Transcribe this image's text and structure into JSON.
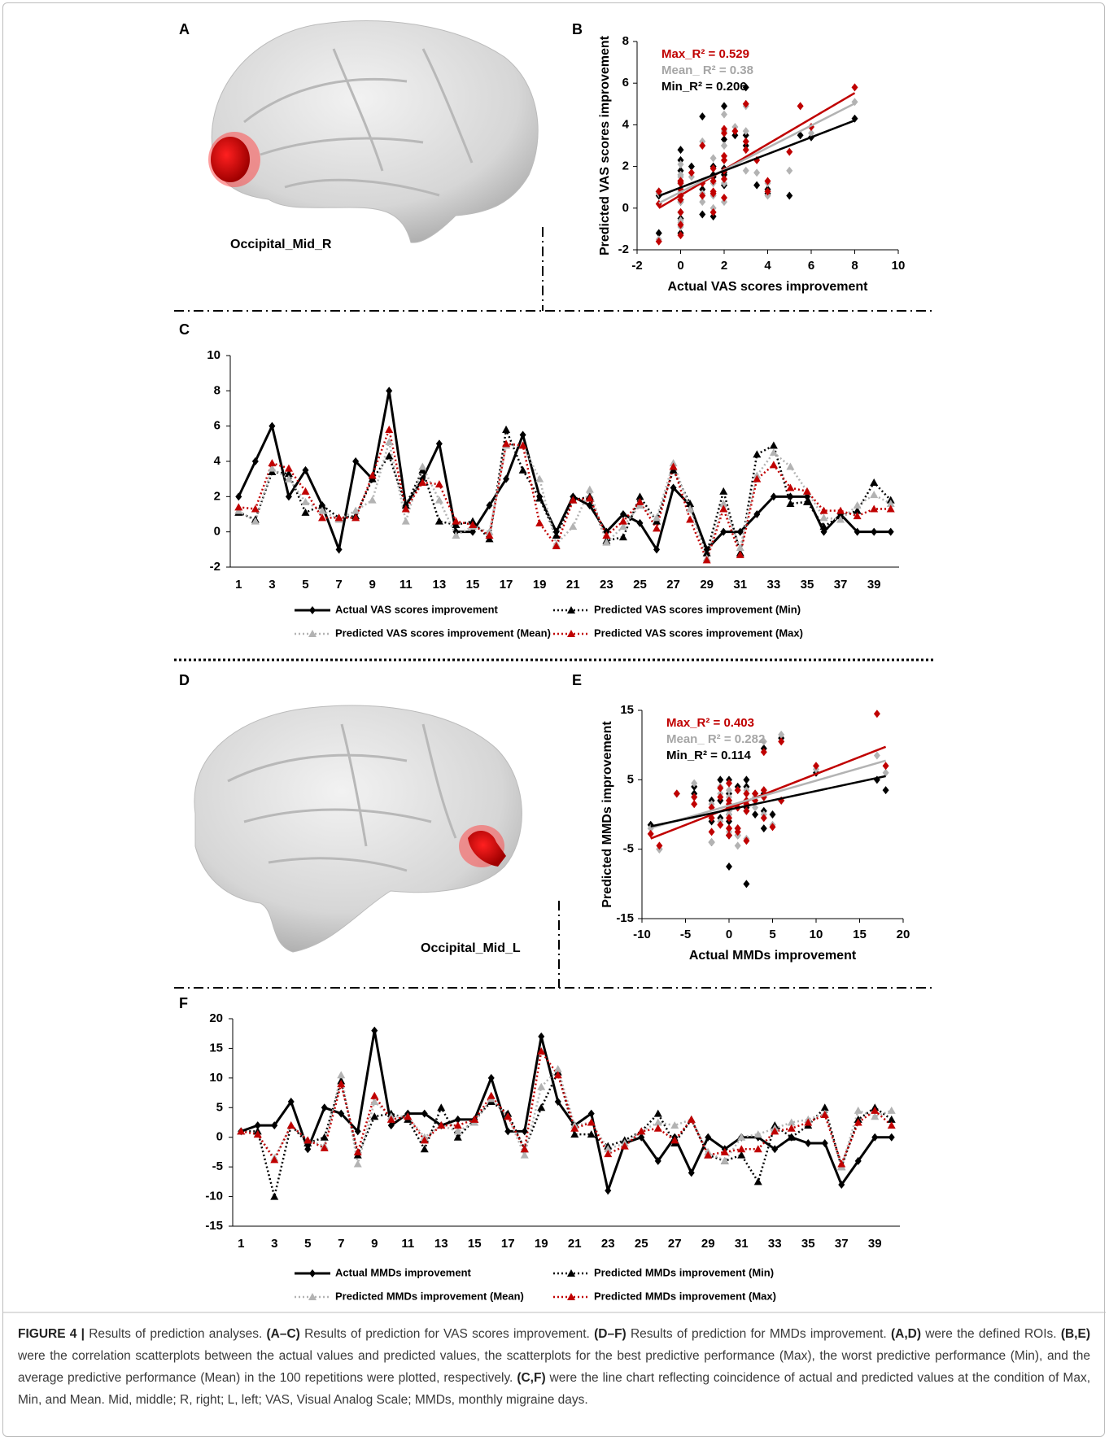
{
  "panel_labels": [
    "A",
    "B",
    "C",
    "D",
    "E",
    "F"
  ],
  "regions": [
    "Occipital_Mid_R",
    "Occipital_Mid_L"
  ],
  "chart_data": [
    {
      "type": "scatter",
      "xlabel": "Actual VAS scores improvement",
      "ylabel": "Predicted VAS scores improvement",
      "xlim": [
        -2,
        10
      ],
      "ylim": [
        -2,
        8
      ],
      "xticks": [
        -2,
        0,
        2,
        4,
        6,
        8,
        10
      ],
      "yticks": [
        -2,
        0,
        2,
        4,
        6,
        8
      ],
      "trendline": true,
      "annotations": [
        {
          "text": "Max_R² = 0.529",
          "color": "#c00000"
        },
        {
          "text": "Mean_ R² = 0.38",
          "color": "#a6a6a6"
        },
        {
          "text": "Min_R² = 0.206",
          "color": "#000000"
        }
      ],
      "x": [
        2,
        4,
        6,
        2,
        3.5,
        1.5,
        -1,
        4,
        3,
        8,
        1.5,
        3,
        5,
        0,
        0,
        1.5,
        3,
        5.5,
        2,
        0,
        2,
        1.5,
        0,
        1,
        0.5,
        -1,
        2.5,
        1.5,
        -1,
        0,
        0,
        1,
        2,
        2,
        2,
        0,
        1,
        0,
        0,
        0
      ],
      "series": [
        {
          "color": "#c00000",
          "values": [
            1.4,
            1.3,
            3.9,
            3.6,
            2.3,
            0.8,
            0.8,
            0.8,
            3.2,
            5.8,
            1.3,
            2.8,
            2.7,
            0.6,
            0.4,
            -0.2,
            5,
            4.9,
            0.5,
            -0.8,
            1.8,
            1.9,
            -0.2,
            0.6,
            1.7,
            0.2,
            3.7,
            0.7,
            -1.6,
            1.3,
            -1.3,
            3,
            3.8,
            2.5,
            2.3,
            1.2,
            1.2,
            0.9,
            1.3,
            1.3
          ]
        },
        {
          "color": "#b3b3b3",
          "values": [
            1.2,
            0.6,
            3.6,
            3,
            1.7,
            1.2,
            0.7,
            1.2,
            1.8,
            5.1,
            0.6,
            3.7,
            1.8,
            -0.2,
            0.3,
            0,
            4.9,
            4.9,
            3,
            -0.7,
            0.3,
            2.4,
            -0.6,
            0.3,
            1.5,
            0.8,
            3.9,
            1.3,
            -1.5,
            1.6,
            -0.9,
            3.2,
            4.5,
            3.7,
            2.3,
            0.8,
            0.7,
            1.5,
            2.1,
            1.6
          ]
        },
        {
          "color": "#000000",
          "values": [
            1.1,
            0.7,
            3.4,
            3.3,
            1.1,
            1.5,
            0.8,
            0.9,
            3,
            4.3,
            1.5,
            3.5,
            0.6,
            0.4,
            0.6,
            -0.4,
            5.8,
            3.5,
            1.9,
            -0.2,
            1.8,
            2,
            -0.5,
            -0.3,
            2,
            0.6,
            3.5,
            1.6,
            -1.2,
            2.3,
            -1.2,
            4.4,
            4.9,
            1.6,
            1.7,
            0.3,
            0.9,
            1.2,
            2.8,
            1.8
          ]
        }
      ]
    },
    {
      "type": "line",
      "ylim": [
        -2,
        10
      ],
      "yticks": [
        -2,
        0,
        2,
        4,
        6,
        8,
        10
      ],
      "legend": "bottom",
      "categories": [
        1,
        null,
        3,
        null,
        5,
        null,
        7,
        null,
        9,
        null,
        11,
        null,
        13,
        null,
        15,
        null,
        17,
        null,
        19,
        null,
        21,
        null,
        23,
        null,
        25,
        null,
        27,
        null,
        29,
        null,
        31,
        null,
        33,
        null,
        35,
        null,
        37,
        null,
        39,
        null
      ],
      "series": [
        {
          "name": "Actual VAS  scores improvement",
          "color": "#000000",
          "line_style": "solid",
          "marker": "diamond",
          "values": [
            2,
            4,
            6,
            2,
            3.5,
            1.5,
            -1,
            4,
            3,
            8,
            1.5,
            3,
            5,
            0,
            0,
            1.5,
            3,
            5.5,
            2,
            0,
            2,
            1.5,
            0,
            1,
            0.5,
            -1,
            2.5,
            1.5,
            -1,
            0,
            0,
            1,
            2,
            2,
            2,
            0,
            1,
            0,
            0,
            0
          ]
        },
        {
          "name": "Predicted VAS scores improvement (Min)",
          "color": "#000000",
          "line_style": "dotted",
          "marker": "triangle",
          "values": [
            1.1,
            0.7,
            3.4,
            3.3,
            1.1,
            1.5,
            0.8,
            0.9,
            3,
            4.3,
            1.5,
            3.5,
            0.6,
            0.4,
            0.6,
            -0.4,
            5.8,
            3.5,
            1.9,
            -0.2,
            1.8,
            2,
            -0.5,
            -0.3,
            2,
            0.6,
            3.5,
            1.6,
            -1.2,
            2.3,
            -1.2,
            4.4,
            4.9,
            1.6,
            1.7,
            0.3,
            0.9,
            1.2,
            2.8,
            1.8
          ]
        },
        {
          "name": "Predicted VAS scores improvement (Mean)",
          "color": "#b3b3b3",
          "line_style": "dotted",
          "marker": "triangle",
          "values": [
            1.2,
            0.6,
            3.6,
            3,
            1.7,
            1.2,
            0.7,
            1.2,
            1.8,
            5.1,
            0.6,
            3.7,
            1.8,
            -0.2,
            0.3,
            0,
            4.9,
            4.9,
            3,
            -0.7,
            0.3,
            2.4,
            -0.6,
            0.3,
            1.5,
            0.8,
            3.9,
            1.3,
            -1.5,
            1.6,
            -0.9,
            3.2,
            4.5,
            3.7,
            2.3,
            0.8,
            0.7,
            1.5,
            2.1,
            1.6
          ]
        },
        {
          "name": "Predicted VAS scores improvement (Max)",
          "color": "#c00000",
          "line_style": "dotted",
          "marker": "triangle",
          "values": [
            1.4,
            1.3,
            3.9,
            3.6,
            2.3,
            0.8,
            0.8,
            0.8,
            3.2,
            5.8,
            1.3,
            2.8,
            2.7,
            0.6,
            0.4,
            -0.2,
            5,
            4.9,
            0.5,
            -0.8,
            1.8,
            1.9,
            -0.2,
            0.6,
            1.7,
            0.2,
            3.7,
            0.7,
            -1.6,
            1.3,
            -1.3,
            3,
            3.8,
            2.5,
            2.3,
            1.2,
            1.2,
            0.9,
            1.3,
            1.3
          ]
        }
      ]
    },
    {
      "type": "scatter",
      "xlabel": "Actual MMDs improvement",
      "ylabel": "Predicted MMDs improvement",
      "xlim": [
        -10,
        20
      ],
      "ylim": [
        -15,
        15
      ],
      "xticks": [
        -10,
        -5,
        0,
        5,
        10,
        15,
        20
      ],
      "yticks": [
        -15,
        -5,
        5,
        15
      ],
      "trendline": true,
      "annotations": [
        {
          "text": "Max_R² = 0.403",
          "color": "#c00000"
        },
        {
          "text": "Mean_ R² = 0.282",
          "color": "#a6a6a6"
        },
        {
          "text": "Min_R² = 0.114",
          "color": "#000000"
        }
      ],
      "x": [
        1,
        2,
        2,
        6,
        -2,
        5,
        4,
        1,
        18,
        2,
        4,
        4,
        2,
        3,
        3,
        10,
        1,
        1,
        17,
        6,
        2,
        4,
        -9,
        -1,
        0,
        -4,
        0,
        -6,
        0,
        -2,
        0,
        0,
        -2,
        0,
        -1,
        -1,
        -8,
        -4,
        0,
        0
      ],
      "series": [
        {
          "color": "#c00000",
          "values": [
            1,
            0.5,
            -3.8,
            2,
            -0.5,
            -1.8,
            9,
            -2.5,
            7,
            3,
            3.5,
            -0.5,
            2,
            2,
            3,
            7,
            3.5,
            -2,
            14.5,
            10.5,
            1.5,
            2.5,
            -2.8,
            -1.5,
            1,
            1.5,
            -0.5,
            3,
            -3,
            -2.5,
            -2,
            -2,
            1,
            1.5,
            2.5,
            3.8,
            -4.5,
            2.5,
            4.5,
            2
          ]
        },
        {
          "color": "#b3b3b3",
          "values": [
            1,
            0.5,
            -3.5,
            2,
            -0.5,
            -1.5,
            10.5,
            -4.5,
            6,
            3.5,
            3.5,
            0,
            2,
            1,
            2.5,
            6.5,
            3.5,
            -3,
            8.5,
            11.5,
            2,
            2.5,
            -2,
            -1,
            1,
            2.5,
            2,
            3,
            -2.5,
            -4,
            0,
            0.5,
            1.5,
            2.5,
            3,
            4,
            -5,
            4.5,
            3.5,
            4.5
          ]
        },
        {
          "color": "#000000",
          "values": [
            1,
            1,
            -10,
            2,
            -1,
            0,
            9.5,
            -3,
            3.5,
            4,
            3,
            -2,
            5,
            0,
            3,
            6,
            4,
            -2,
            5,
            11,
            0.5,
            0.5,
            -1.5,
            -0.5,
            1,
            4,
            -1,
            3,
            -3,
            -4,
            -3,
            -7.5,
            2,
            0,
            2,
            5,
            -5,
            3,
            5,
            3
          ]
        }
      ]
    },
    {
      "type": "line",
      "ylim": [
        -15,
        20
      ],
      "yticks": [
        -15,
        -10,
        -5,
        0,
        5,
        10,
        15,
        20
      ],
      "legend": "bottom",
      "categories": [
        1,
        null,
        3,
        null,
        5,
        null,
        7,
        null,
        9,
        null,
        11,
        null,
        13,
        null,
        15,
        null,
        17,
        null,
        19,
        null,
        21,
        null,
        23,
        null,
        25,
        null,
        27,
        null,
        29,
        null,
        31,
        null,
        33,
        null,
        35,
        null,
        37,
        null,
        39,
        null
      ],
      "series": [
        {
          "name": "Actual MMDs  improvement",
          "color": "#000000",
          "line_style": "solid",
          "marker": "diamond",
          "values": [
            1,
            2,
            2,
            6,
            -2,
            5,
            4,
            1,
            18,
            2,
            4,
            4,
            2,
            3,
            3,
            10,
            1,
            1,
            17,
            6,
            2,
            4,
            -9,
            -1,
            0,
            -4,
            0,
            -6,
            0,
            -2,
            0,
            0,
            -2,
            0,
            -1,
            -1,
            -8,
            -4,
            0,
            0
          ]
        },
        {
          "name": "Predicted MMDs  improvement (Min)",
          "color": "#000000",
          "line_style": "dotted",
          "marker": "triangle",
          "values": [
            1,
            1,
            -10,
            2,
            -1,
            0,
            9.5,
            -3,
            3.5,
            4,
            3,
            -2,
            5,
            0,
            3,
            6,
            4,
            -2,
            5,
            11,
            0.5,
            0.5,
            -1.5,
            -0.5,
            1,
            4,
            -1,
            3,
            -3,
            -4,
            -3,
            -7.5,
            2,
            0,
            2,
            5,
            -5,
            3,
            5,
            3
          ]
        },
        {
          "name": "Predicted MMDs  improvement (Mean)",
          "color": "#b3b3b3",
          "line_style": "dotted",
          "marker": "triangle",
          "values": [
            1,
            0.5,
            -3.5,
            2,
            -0.5,
            -1.5,
            10.5,
            -4.5,
            6,
            3.5,
            3.5,
            0,
            2,
            1,
            2.5,
            6.5,
            3.5,
            -3,
            8.5,
            11.5,
            2,
            2.5,
            -2,
            -1,
            1,
            2.5,
            2,
            3,
            -2.5,
            -4,
            0,
            0.5,
            1.5,
            2.5,
            3,
            4,
            -5,
            4.5,
            3.5,
            4.5
          ]
        },
        {
          "name": "Predicted MMDs  improvement (Max)",
          "color": "#c00000",
          "line_style": "dotted",
          "marker": "triangle",
          "values": [
            1,
            0.5,
            -3.8,
            2,
            -0.5,
            -1.8,
            9,
            -2.5,
            7,
            3,
            3.5,
            -0.5,
            2,
            2,
            3,
            7,
            3.5,
            -2,
            14.5,
            10.5,
            1.5,
            2.5,
            -2.8,
            -1.5,
            1,
            1.5,
            -0.5,
            3,
            -3,
            -2.5,
            -2,
            -2,
            1,
            1.5,
            2.5,
            3.8,
            -4.5,
            2.5,
            4.5,
            2
          ]
        }
      ]
    }
  ],
  "caption": [
    {
      "text": "FIGURE 4 |",
      "bold": true
    },
    {
      "text": " Results of prediction analyses. ",
      "bold": false
    },
    {
      "text": "(A–C)",
      "bold": true
    },
    {
      "text": " Results of prediction for VAS scores improvement. ",
      "bold": false
    },
    {
      "text": "(D–F)",
      "bold": true
    },
    {
      "text": " Results of prediction for MMDs improvement. ",
      "bold": false
    },
    {
      "text": "(A,D)",
      "bold": true
    },
    {
      "text": " were the defined ROIs. ",
      "bold": false
    },
    {
      "text": "(B,E)",
      "bold": true
    },
    {
      "text": " were the correlation scatterplots between the actual values and predicted values, the scatterplots for the best predictive performance (Max), the worst predictive performance (Min), and the average predictive performance (Mean) in the 100 repetitions were plotted, respectively. ",
      "bold": false
    },
    {
      "text": "(C,F)",
      "bold": true
    },
    {
      "text": " were the line chart reflecting coincidence of actual and predicted values at the condition of Max, Min, and Mean. Mid, middle; R, right; L, left; VAS, Visual Analog Scale; MMDs, monthly migraine days.",
      "bold": false
    }
  ]
}
